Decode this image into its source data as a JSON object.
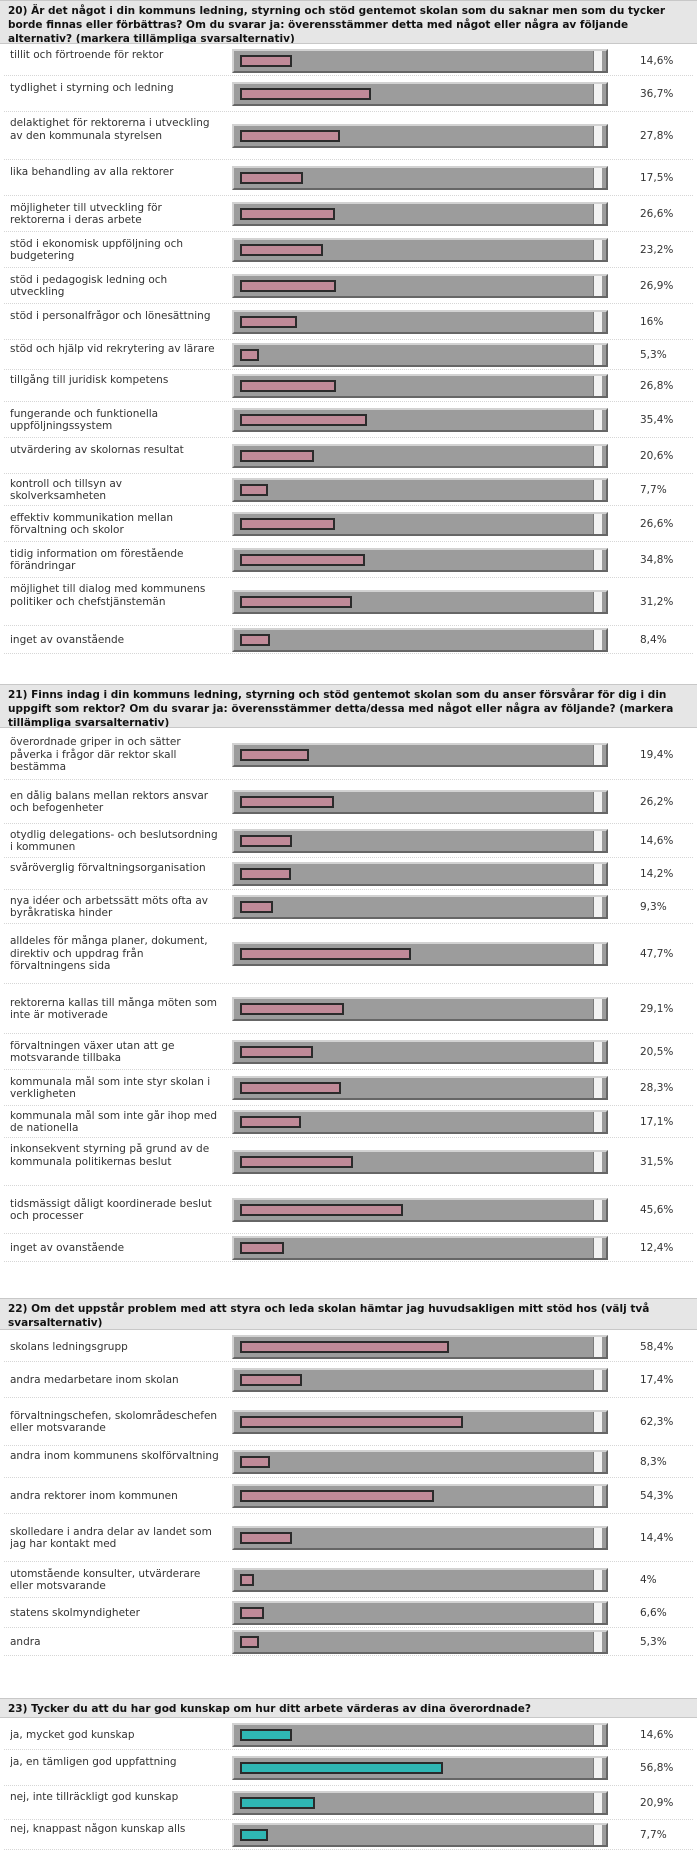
{
  "questions": [
    {
      "title": "20) Är det något i din kommuns ledning, styrning och stöd gentemot skolan som du saknar men som du tycker borde finnas eller förbättras? Om du svarar ja: överensstämmer detta med något eller några av följande alternativ? (markera tillämpliga svarsalternativ)",
      "color": "#c08a98",
      "items": [
        {
          "label": "tillit och förtroende för rektor",
          "pct": "14,6%"
        },
        {
          "label": "tydlighet i styrning och ledning",
          "pct": "36,7%"
        },
        {
          "label": "delaktighet för rektorerna i utveckling av den kommunala styrelsen",
          "pct": "27,8%"
        },
        {
          "label": "lika behandling av alla rektorer",
          "pct": "17,5%"
        },
        {
          "label": "möjligheter till utveckling för rektorerna i deras arbete",
          "pct": "26,6%"
        },
        {
          "label": "stöd i ekonomisk uppföljning och budgetering",
          "pct": "23,2%"
        },
        {
          "label": "stöd i pedagogisk ledning och utveckling",
          "pct": "26,9%"
        },
        {
          "label": "stöd i personalfrågor och lönesättning",
          "pct": "16%"
        },
        {
          "label": "stöd och hjälp vid rekrytering av lärare",
          "pct": "5,3%"
        },
        {
          "label": "tillgång till juridisk kompetens",
          "pct": "26,8%"
        },
        {
          "label": "fungerande och funktionella uppföljningssystem",
          "pct": "35,4%"
        },
        {
          "label": "utvärdering av skolornas resultat",
          "pct": "20,6%"
        },
        {
          "label": "kontroll och tillsyn av skolverksamheten",
          "pct": "7,7%"
        },
        {
          "label": "effektiv kommunikation mellan förvaltning och skolor",
          "pct": "26,6%"
        },
        {
          "label": "tidig information om förestående förändringar",
          "pct": "34,8%"
        },
        {
          "label": "möjlighet till dialog med kommunens politiker och chefstjänstemän",
          "pct": "31,2%"
        },
        {
          "label": "inget av ovanstående",
          "pct": "8,4%"
        }
      ]
    },
    {
      "title": "21) Finns indag i din kommuns ledning, styrning och stöd gentemot skolan som du anser försvårar för dig i din uppgift som rektor? Om du svarar ja: överensstämmer detta/dessa med något eller några av följande? (markera tillämpliga svarsalternativ)",
      "color": "#c08a98",
      "items": [
        {
          "label": "överordnade griper in och sätter påverka i frågor där rektor skall bestämma",
          "pct": "19,4%"
        },
        {
          "label": "en dålig balans mellan rektors ansvar och befogenheter",
          "pct": "26,2%"
        },
        {
          "label": "otydlig delegations- och beslutsordning i kommunen",
          "pct": "14,6%"
        },
        {
          "label": "svåröverglig förvaltningsorganisation",
          "pct": "14,2%"
        },
        {
          "label": "nya idéer och arbetssätt möts ofta av byråkratiska hinder",
          "pct": "9,3%"
        },
        {
          "label": "alldeles för många planer, dokument, direktiv och uppdrag från förvaltningens sida",
          "pct": "47,7%"
        },
        {
          "label": "rektorerna kallas till många möten som inte är motiverade",
          "pct": "29,1%"
        },
        {
          "label": "förvaltningen växer utan att ge motsvarande tillbaka",
          "pct": "20,5%"
        },
        {
          "label": "kommunala mål som inte styr skolan i verkligheten",
          "pct": "28,3%"
        },
        {
          "label": "kommunala mål som inte går ihop med de nationella",
          "pct": "17,1%"
        },
        {
          "label": "inkonsekvent styrning på grund av de kommunala politikernas beslut",
          "pct": "31,5%"
        },
        {
          "label": "tidsmässigt dåligt koordinerade beslut och processer",
          "pct": "45,6%"
        },
        {
          "label": "inget av ovanstående",
          "pct": "12,4%"
        }
      ]
    },
    {
      "title": "22) Om det uppstår problem med att styra och leda skolan hämtar jag huvudsakligen mitt stöd hos (välj två svarsalternativ)",
      "color": "#c08a98",
      "items": [
        {
          "label": "skolans ledningsgrupp",
          "pct": "58,4%"
        },
        {
          "label": "andra medarbetare inom skolan",
          "pct": "17,4%"
        },
        {
          "label": "förvaltningschefen, skolområdeschefen eller motsvarande",
          "pct": "62,3%"
        },
        {
          "label": "andra inom kommunens skolförvaltning",
          "pct": "8,3%"
        },
        {
          "label": "andra rektorer inom kommunen",
          "pct": "54,3%"
        },
        {
          "label": "skolledare i andra delar av landet som jag har kontakt med",
          "pct": "14,4%"
        },
        {
          "label": "utomstående konsulter, utvärderare eller motsvarande",
          "pct": "4%"
        },
        {
          "label": "statens skolmyndigheter",
          "pct": "6,6%"
        },
        {
          "label": "andra",
          "pct": "5,3%"
        }
      ]
    },
    {
      "title": "23) Tycker du att du har god kunskap om hur ditt arbete värderas av dina överordnade?",
      "color": "#2fb7b4",
      "items": [
        {
          "label": "ja, mycket god kunskap",
          "pct": "14,6%"
        },
        {
          "label": "ja, en tämligen god uppfattning",
          "pct": "56,8%"
        },
        {
          "label": "nej, inte tillräckligt god kunskap",
          "pct": "20,9%"
        },
        {
          "label": "nej, knappast någon kunskap alls",
          "pct": "7,7%"
        }
      ]
    }
  ]
}
